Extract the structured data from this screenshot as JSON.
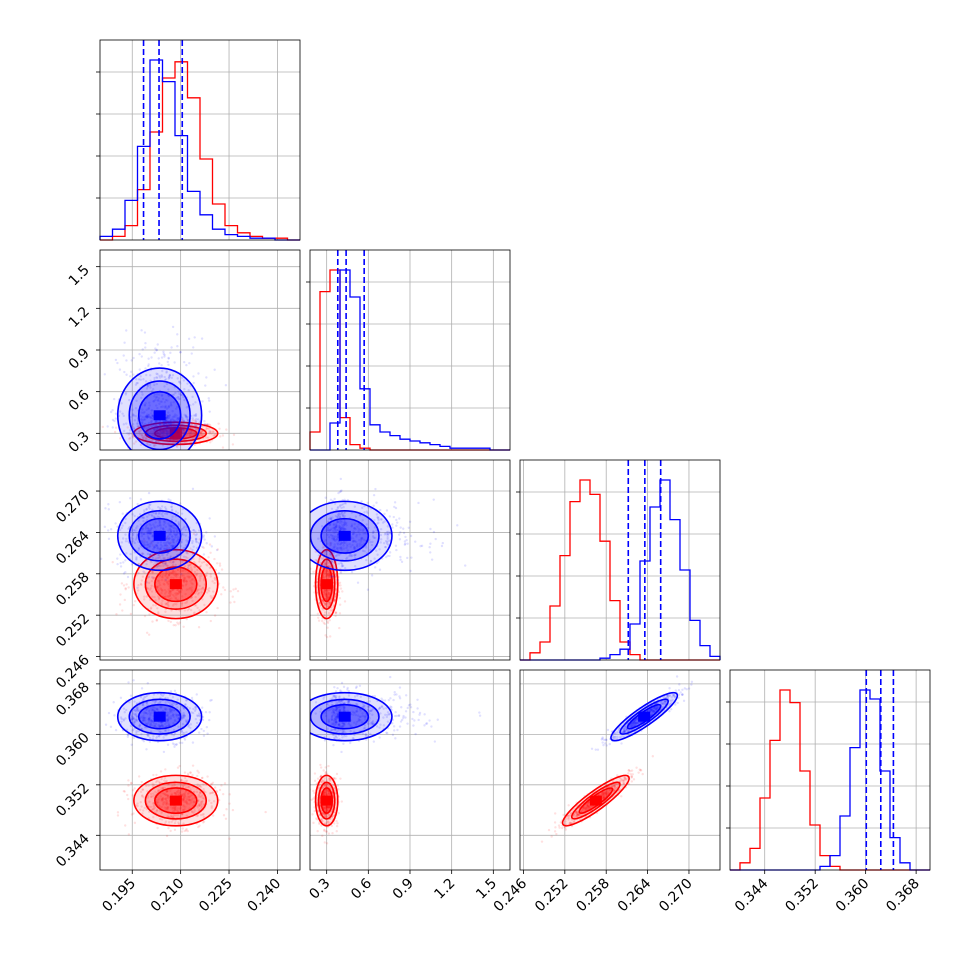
{
  "chart_data": {
    "type": "corner",
    "grid": true,
    "colors": {
      "series_a": "#0000ff",
      "series_b": "#ff0000"
    },
    "parameters": [
      {
        "ticks": [
          "0.195",
          "0.210",
          "0.225",
          "0.240"
        ],
        "tick_values": [
          0.195,
          0.21,
          0.225,
          0.24
        ],
        "range": [
          0.185,
          0.247
        ]
      },
      {
        "ticks": [
          "0.3",
          "0.6",
          "0.9",
          "1.2",
          "1.5"
        ],
        "tick_values": [
          0.3,
          0.6,
          0.9,
          1.2,
          1.5
        ],
        "range": [
          0.18,
          1.62
        ]
      },
      {
        "ticks": [
          "0.246",
          "0.252",
          "0.258",
          "0.264",
          "0.270"
        ],
        "tick_values": [
          0.246,
          0.252,
          0.258,
          0.264,
          0.27
        ],
        "range": [
          0.2455,
          0.2745
        ]
      },
      {
        "ticks": [
          "0.344",
          "0.352",
          "0.360",
          "0.368"
        ],
        "tick_values": [
          0.344,
          0.352,
          0.36,
          0.368
        ],
        "range": [
          0.3385,
          0.3702
        ]
      }
    ],
    "series": [
      {
        "color": "#0000ff",
        "mean": [
          0.2035,
          0.43,
          0.2635,
          0.3628
        ],
        "sd": [
          0.0065,
          0.17,
          0.0025,
          0.0019
        ],
        "quantile_lines": [
          [
            0.1985,
            0.2033,
            0.2105
          ],
          [
            0.38,
            0.44,
            0.57
          ],
          [
            0.2612,
            0.2636,
            0.2659
          ],
          [
            0.3601,
            0.3624,
            0.3644
          ]
        ]
      },
      {
        "color": "#ff0000",
        "mean": [
          0.2085,
          0.3,
          0.2565,
          0.3495
        ],
        "sd": [
          0.0065,
          0.04,
          0.0025,
          0.002
        ]
      }
    ],
    "histograms": [
      {
        "bin_range": [
          0.185,
          0.247
        ],
        "a": [
          2,
          6,
          22,
          52,
          100,
          88,
          58,
          27,
          14,
          6,
          3,
          2,
          1,
          1,
          0,
          0
        ],
        "b": [
          0,
          2,
          8,
          28,
          60,
          90,
          99,
          79,
          45,
          20,
          8,
          4,
          2,
          1,
          1,
          0
        ]
      },
      {
        "bin_range": [
          0.18,
          1.62
        ],
        "a": [
          0,
          0,
          15,
          100,
          85,
          34,
          14,
          10,
          8,
          6,
          5,
          4,
          3,
          2,
          1,
          1,
          1,
          1,
          0,
          0
        ],
        "b": [
          10,
          88,
          100,
          18,
          3,
          1,
          0,
          0,
          0,
          0,
          0,
          0,
          0,
          0,
          0,
          0,
          0,
          0,
          0,
          0
        ]
      },
      {
        "bin_range": [
          0.2455,
          0.2745
        ],
        "a": [
          0,
          0,
          0,
          0,
          0,
          0,
          0,
          0,
          1,
          3,
          6,
          20,
          55,
          85,
          100,
          78,
          50,
          22,
          8,
          2
        ],
        "b": [
          0,
          4,
          10,
          30,
          58,
          88,
          100,
          92,
          66,
          33,
          10,
          3,
          0,
          0,
          0,
          0,
          0,
          0,
          0,
          0
        ]
      },
      {
        "bin_range": [
          0.3385,
          0.3702
        ],
        "a": [
          0,
          0,
          0,
          0,
          0,
          0,
          0,
          0,
          0,
          2,
          8,
          30,
          68,
          100,
          95,
          55,
          18,
          4,
          0,
          0
        ],
        "b": [
          0,
          4,
          12,
          40,
          72,
          100,
          93,
          55,
          25,
          8,
          2,
          0,
          0,
          0,
          0,
          0,
          0,
          0,
          0,
          0
        ]
      }
    ]
  }
}
